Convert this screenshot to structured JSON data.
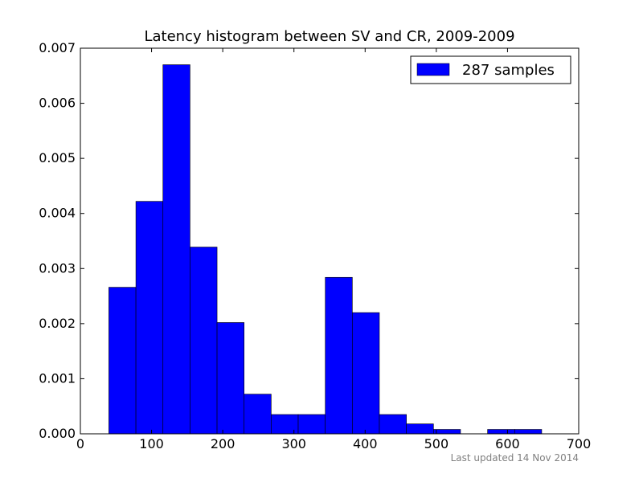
{
  "chart_data": {
    "type": "bar",
    "title": "Latency histogram between SV and CR, 2009-2009",
    "xlabel": "",
    "ylabel": "",
    "xlim": [
      0,
      700
    ],
    "ylim": [
      0,
      0.007
    ],
    "x_ticks": [
      "0",
      "100",
      "200",
      "300",
      "400",
      "500",
      "600",
      "700"
    ],
    "y_ticks": [
      "0.000",
      "0.001",
      "0.002",
      "0.003",
      "0.004",
      "0.005",
      "0.006",
      "0.007"
    ],
    "bin_width": 38,
    "bins": [
      {
        "x0": 40,
        "x1": 78,
        "value": 0.00266
      },
      {
        "x0": 78,
        "x1": 116,
        "value": 0.00422
      },
      {
        "x0": 116,
        "x1": 154,
        "value": 0.0067
      },
      {
        "x0": 154,
        "x1": 192,
        "value": 0.00339
      },
      {
        "x0": 192,
        "x1": 230,
        "value": 0.00202
      },
      {
        "x0": 230,
        "x1": 268,
        "value": 0.00072
      },
      {
        "x0": 268,
        "x1": 306,
        "value": 0.00035
      },
      {
        "x0": 306,
        "x1": 344,
        "value": 0.00035
      },
      {
        "x0": 344,
        "x1": 382,
        "value": 0.00284
      },
      {
        "x0": 382,
        "x1": 420,
        "value": 0.0022
      },
      {
        "x0": 420,
        "x1": 458,
        "value": 0.00035
      },
      {
        "x0": 458,
        "x1": 496,
        "value": 0.00018
      },
      {
        "x0": 496,
        "x1": 534,
        "value": 8e-05
      },
      {
        "x0": 534,
        "x1": 572,
        "value": 0.0
      },
      {
        "x0": 572,
        "x1": 610,
        "value": 8e-05
      },
      {
        "x0": 610,
        "x1": 648,
        "value": 8e-05
      }
    ],
    "series": [
      {
        "name": "287 samples",
        "color": "#0000ff"
      }
    ],
    "legend_position": "top-right",
    "grid": false
  },
  "footnote": "Last updated 14 Nov 2014"
}
